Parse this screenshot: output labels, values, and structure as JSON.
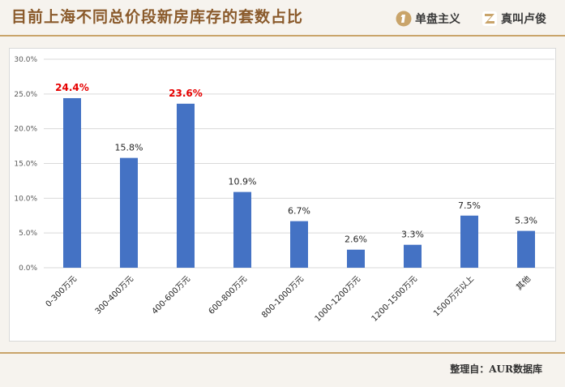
{
  "header": {
    "title": "目前上海不同总价段新房库存的套数占比",
    "brand1": "单盘主义",
    "brand2": "真叫卢俊"
  },
  "footer": {
    "source": "整理自：AUR数据库"
  },
  "colors": {
    "bar": "#4472c4",
    "highlight_label": "#e60000",
    "label": "#262626",
    "axis_text": "#595959",
    "grid": "#d9d9d9",
    "brand": "#c9a46a"
  },
  "chart_data": {
    "type": "bar",
    "categories": [
      "0-300万元",
      "300-400万元",
      "400-600万元",
      "600-800万元",
      "800-1000万元",
      "1000-1200万元",
      "1200-1500万元",
      "1500万元以上",
      "其他"
    ],
    "values": [
      24.4,
      15.8,
      23.6,
      10.9,
      6.7,
      2.6,
      3.3,
      7.5,
      5.3
    ],
    "value_labels": [
      "24.4%",
      "15.8%",
      "23.6%",
      "10.9%",
      "6.7%",
      "2.6%",
      "3.3%",
      "7.5%",
      "5.3%"
    ],
    "highlighted": [
      0,
      2
    ],
    "yticks": [
      "0.0%",
      "5.0%",
      "10.0%",
      "15.0%",
      "20.0%",
      "25.0%",
      "30.0%"
    ],
    "ylim": [
      0,
      30
    ],
    "grid": true,
    "title": "",
    "xlabel": "",
    "ylabel": ""
  }
}
